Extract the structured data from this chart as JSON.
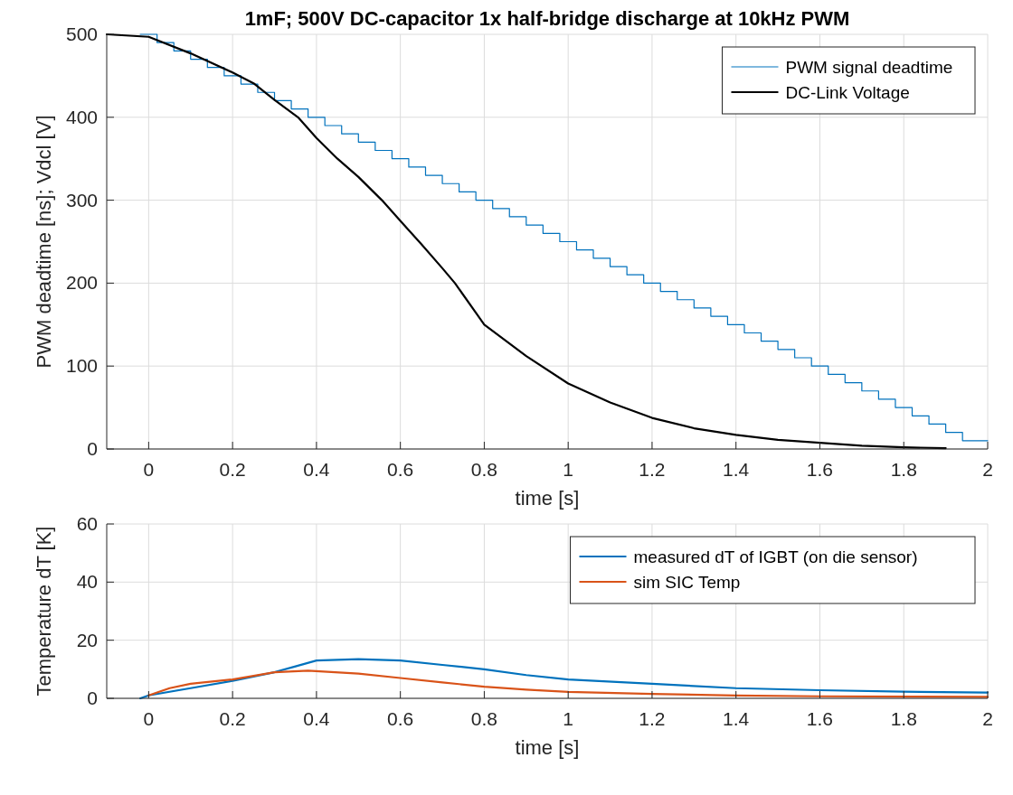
{
  "chart_data": [
    {
      "type": "line",
      "title": "1mF; 500V DC-capacitor 1x half-bridge discharge at 10kHz PWM",
      "xlabel": "time [s]",
      "ylabel": "PWM deadtime [ns]; Vdcl [V]",
      "xlim": [
        -0.1,
        2
      ],
      "xticks": [
        0,
        0.2,
        0.4,
        0.6,
        0.8,
        1,
        1.2,
        1.4,
        1.6,
        1.8,
        2
      ],
      "ylim": [
        0,
        500
      ],
      "yticks": [
        0,
        100,
        200,
        300,
        400,
        500
      ],
      "grid": true,
      "legend": "top right",
      "series": [
        {
          "name": "PWM signal deadtime",
          "type": "step",
          "color": "#0072bd",
          "x": [
            -0.02,
            0.02,
            0.06,
            0.1,
            0.14,
            0.18,
            0.22,
            0.26,
            0.3,
            0.34,
            0.38,
            0.42,
            0.46,
            0.5,
            0.54,
            0.58,
            0.62,
            0.66,
            0.7,
            0.74,
            0.78,
            0.82,
            0.86,
            0.9,
            0.94,
            0.98,
            1.02,
            1.06,
            1.1,
            1.14,
            1.18,
            1.22,
            1.26,
            1.3,
            1.34,
            1.38,
            1.42,
            1.46,
            1.5,
            1.54,
            1.58,
            1.62,
            1.66,
            1.7,
            1.74,
            1.78,
            1.82,
            1.86,
            1.9,
            1.94,
            2
          ],
          "values": [
            500,
            490,
            480,
            470,
            460,
            450,
            440,
            430,
            420,
            410,
            400,
            390,
            380,
            370,
            360,
            350,
            340,
            330,
            320,
            310,
            300,
            290,
            280,
            270,
            260,
            250,
            240,
            230,
            220,
            210,
            200,
            190,
            180,
            170,
            160,
            150,
            140,
            130,
            120,
            110,
            100,
            90,
            80,
            70,
            60,
            50,
            40,
            30,
            20,
            10,
            10
          ]
        },
        {
          "name": "DC-Link Voltage",
          "color": "#000000",
          "x": [
            -0.1,
            0,
            0.1,
            0.2,
            0.25,
            0.3,
            0.356,
            0.4,
            0.45,
            0.5,
            0.556,
            0.6,
            0.65,
            0.7,
            0.73,
            0.786,
            0.8,
            0.9,
            1,
            1.1,
            1.2,
            1.3,
            1.4,
            1.5,
            1.6,
            1.7,
            1.8,
            1.9
          ],
          "values": [
            500,
            497,
            477,
            454,
            441,
            421,
            400,
            375,
            350,
            328,
            300,
            275,
            247,
            218,
            200,
            160,
            150,
            112,
            79,
            56,
            37.5,
            25,
            17,
            11,
            7.5,
            4,
            2,
            1
          ]
        }
      ]
    },
    {
      "type": "line",
      "xlabel": "time [s]",
      "ylabel": "Temperature dT [K]",
      "xlim": [
        -0.1,
        2
      ],
      "xticks": [
        0,
        0.2,
        0.4,
        0.6,
        0.8,
        1,
        1.2,
        1.4,
        1.6,
        1.8,
        2
      ],
      "ylim": [
        0,
        60
      ],
      "yticks": [
        0,
        20,
        40,
        60
      ],
      "grid": true,
      "legend": "top right",
      "series": [
        {
          "name": "measured dT of IGBT (on die sensor)",
          "color": "#0072bd",
          "x": [
            -0.02,
            0,
            0.1,
            0.2,
            0.3,
            0.35,
            0.4,
            0.5,
            0.6,
            0.7,
            0.8,
            0.9,
            1,
            1.2,
            1.4,
            1.6,
            1.8,
            2
          ],
          "values": [
            0,
            1,
            3.5,
            6,
            9,
            11,
            13,
            13.5,
            13,
            11.5,
            10,
            8,
            6.5,
            5,
            3.5,
            2.8,
            2.3,
            2
          ]
        },
        {
          "name": "sim SIC Temp",
          "color": "#d95319",
          "x": [
            0,
            0.05,
            0.1,
            0.2,
            0.3,
            0.38,
            0.5,
            0.6,
            0.7,
            0.8,
            0.9,
            1,
            1.2,
            1.4,
            1.6,
            2
          ],
          "values": [
            1,
            3.5,
            5,
            6.5,
            9,
            9.5,
            8.5,
            7,
            5.5,
            4,
            3,
            2.2,
            1.5,
            1,
            0.7,
            0.5
          ]
        }
      ]
    }
  ]
}
